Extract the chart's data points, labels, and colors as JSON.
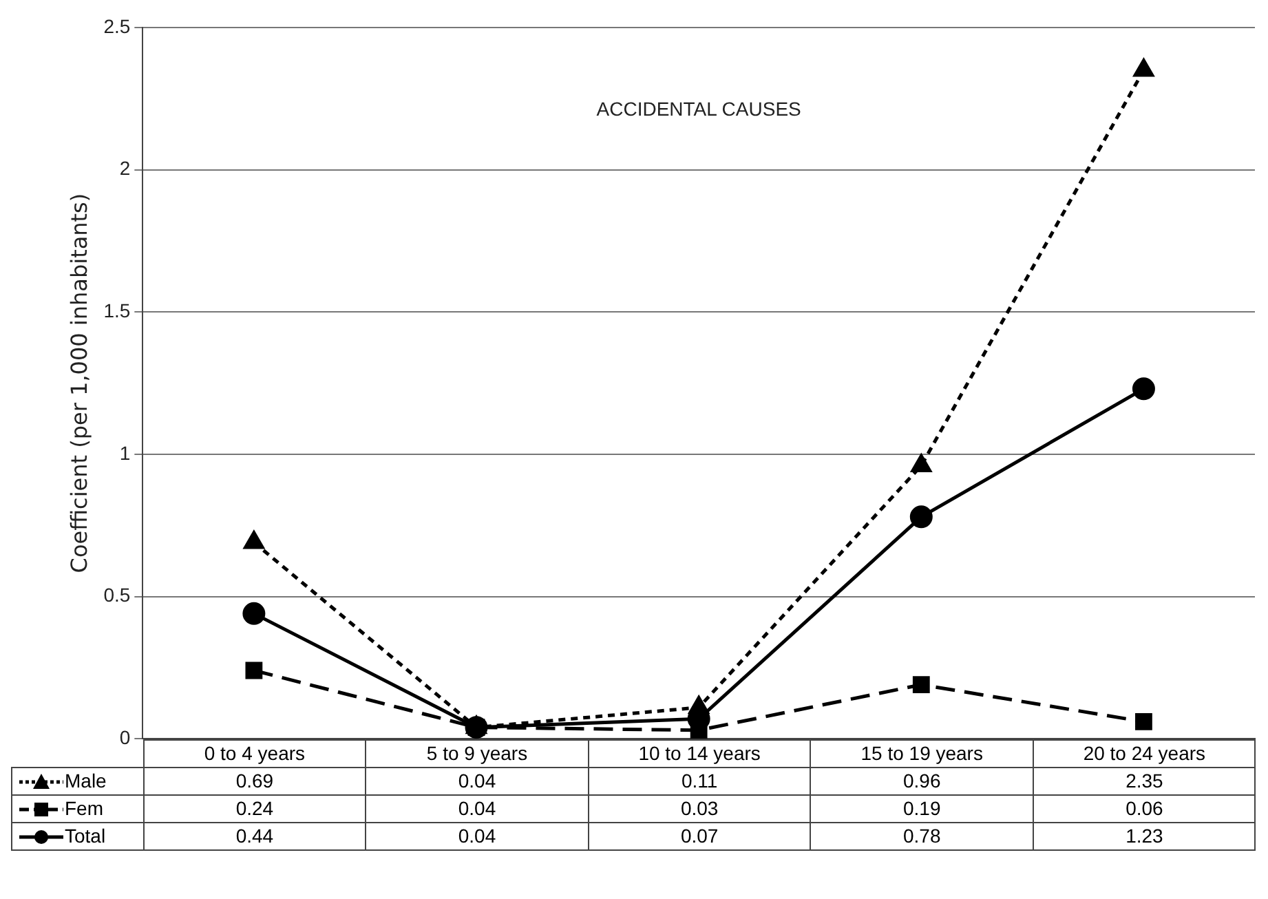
{
  "chart_data": {
    "type": "line",
    "title": "ACCIDENTAL CAUSES",
    "ylabel": "Coefficient (per 1,000 inhabitants)",
    "categories": [
      "0 to 4 years",
      "5 to 9 years",
      "10 to 14 years",
      "15 to 19 years",
      "20 to 24 years"
    ],
    "series": [
      {
        "name": "Male",
        "color": "#000000",
        "marker": "triangle",
        "line_style": "dotted",
        "values": [
          0.69,
          0.04,
          0.11,
          0.96,
          2.35
        ]
      },
      {
        "name": "Fem",
        "color": "#000000",
        "marker": "square",
        "line_style": "dashed",
        "values": [
          0.24,
          0.04,
          0.03,
          0.19,
          0.06
        ]
      },
      {
        "name": "Total",
        "color": "#000000",
        "marker": "circle",
        "line_style": "solid",
        "values": [
          0.44,
          0.04,
          0.07,
          0.78,
          1.23
        ]
      }
    ],
    "ylim": [
      0,
      2.5
    ],
    "yticks": [
      0,
      0.5,
      1,
      1.5,
      2,
      2.5
    ],
    "grid": "y",
    "data_labels": true,
    "legend": "bottom left"
  }
}
